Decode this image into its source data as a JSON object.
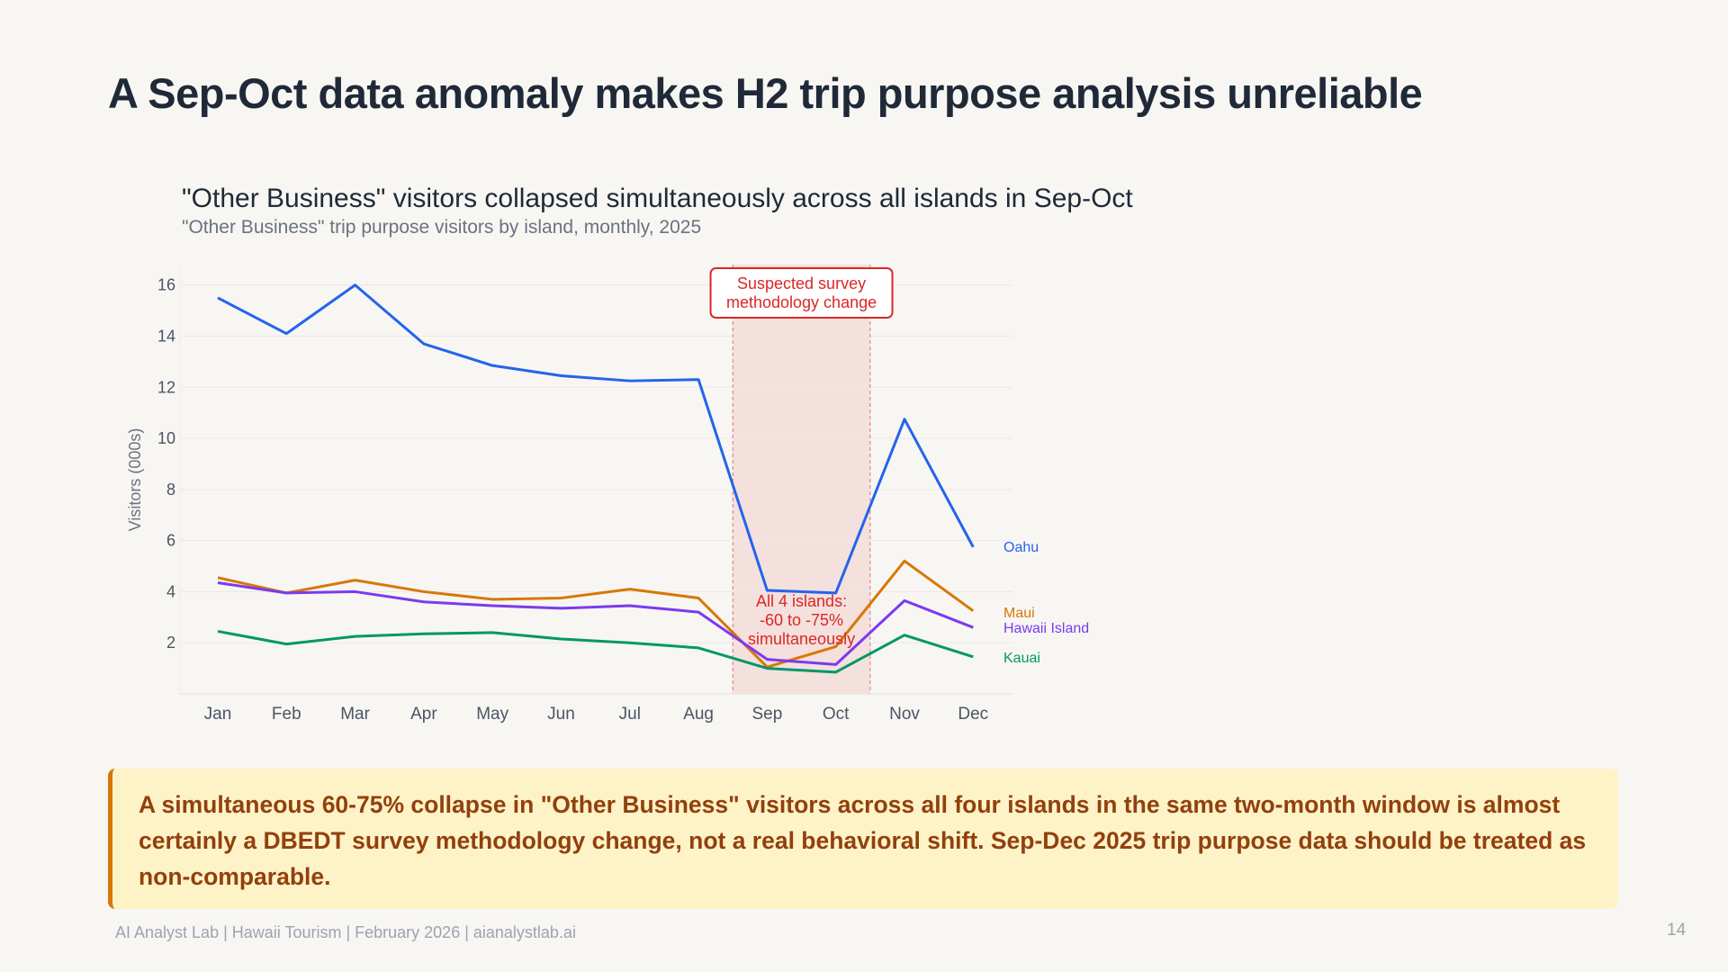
{
  "page_title": "A Sep-Oct data anomaly makes H2 trip purpose analysis unreliable",
  "chart_data": {
    "type": "line",
    "title": "\"Other Business\" visitors collapsed simultaneously across all islands in Sep-Oct",
    "subtitle": "\"Other Business\" trip purpose visitors by island, monthly, 2025",
    "xlabel": "",
    "ylabel": "Visitors (000s)",
    "ylim": [
      0,
      16.8
    ],
    "yticks": [
      2,
      4,
      6,
      8,
      10,
      12,
      14,
      16
    ],
    "grid": true,
    "legend": "end-of-line labels, right",
    "categories": [
      "Jan",
      "Feb",
      "Mar",
      "Apr",
      "May",
      "Jun",
      "Jul",
      "Aug",
      "Sep",
      "Oct",
      "Nov",
      "Dec"
    ],
    "series": [
      {
        "name": "Oahu",
        "color": "#2563eb",
        "values": [
          15.5,
          14.1,
          16.0,
          13.7,
          12.85,
          12.45,
          12.25,
          12.3,
          4.05,
          3.95,
          10.75,
          5.75
        ]
      },
      {
        "name": "Maui",
        "color": "#d97706",
        "values": [
          4.55,
          3.95,
          4.45,
          4.0,
          3.7,
          3.75,
          4.1,
          3.75,
          1.05,
          1.85,
          5.2,
          3.25
        ]
      },
      {
        "name": "Hawaii Island",
        "color": "#7c3aed",
        "values": [
          4.35,
          3.95,
          4.0,
          3.6,
          3.45,
          3.35,
          3.45,
          3.2,
          1.35,
          1.15,
          3.65,
          2.6
        ]
      },
      {
        "name": "Kauai",
        "color": "#059669",
        "values": [
          2.45,
          1.95,
          2.25,
          2.35,
          2.4,
          2.15,
          2.0,
          1.8,
          1.0,
          0.85,
          2.3,
          1.45
        ]
      }
    ],
    "highlight_band": {
      "from": "Sep",
      "to": "Oct",
      "color": "#dc2626"
    },
    "annotations": {
      "band_label": [
        "Suspected survey",
        "methodology change"
      ],
      "drop_label": [
        "All 4 islands:",
        "-60 to -75%",
        "simultaneously"
      ]
    }
  },
  "callout": "A simultaneous 60-75% collapse in \"Other Business\" visitors across all four islands in the same two-month window is almost certainly a DBEDT survey methodology change, not a real behavioral shift. Sep-Dec 2025 trip purpose data should be treated as non-comparable.",
  "footer": "AI Analyst Lab | Hawaii Tourism | February 2026 | aianalystlab.ai",
  "page_number": "14"
}
